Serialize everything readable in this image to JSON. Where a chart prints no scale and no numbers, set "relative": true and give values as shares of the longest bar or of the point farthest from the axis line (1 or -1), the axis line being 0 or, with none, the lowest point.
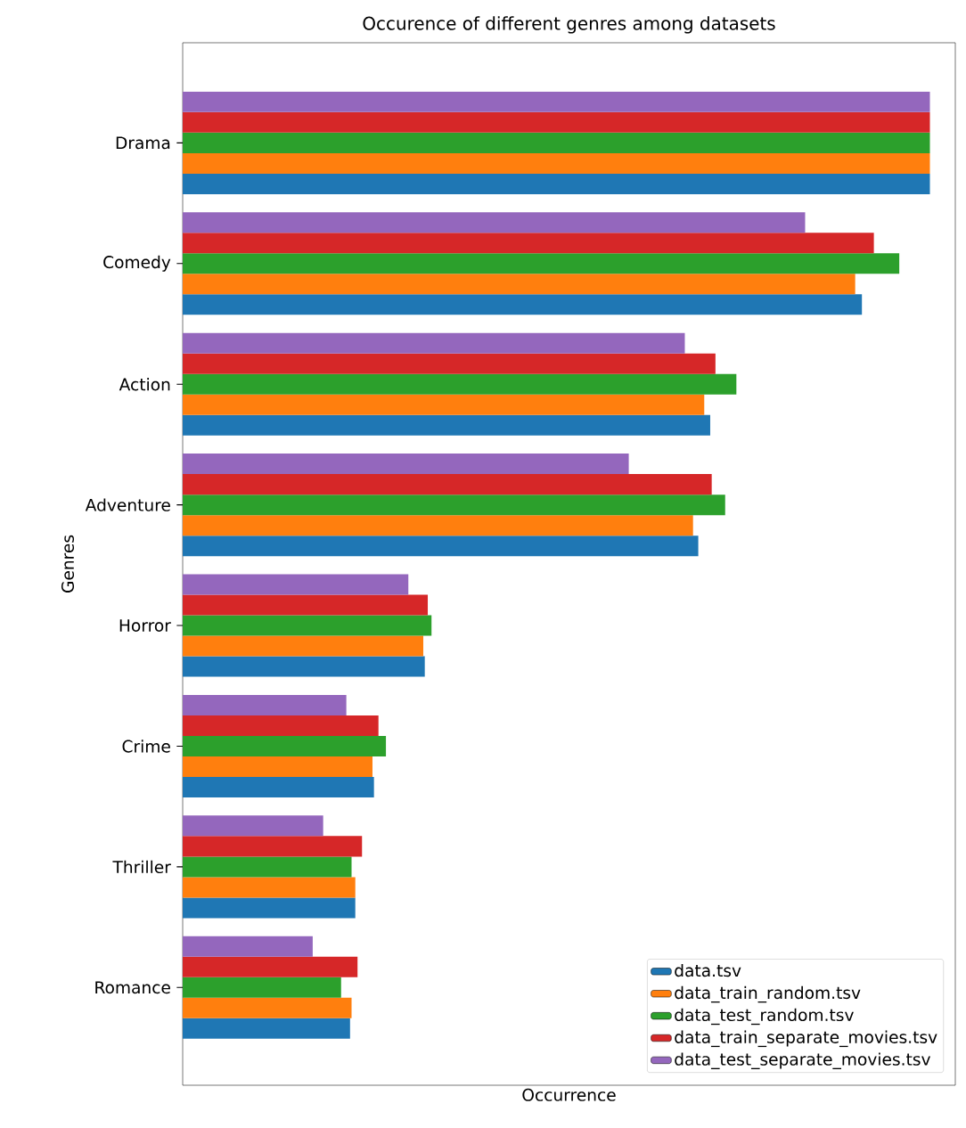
{
  "chart_data": {
    "type": "bar",
    "orientation": "horizontal",
    "relative": true,
    "title": "Occurence of different genres among datasets",
    "xlabel": "Occurrence",
    "ylabel": "Genres",
    "legend": "bottom right",
    "categories": [
      "Drama",
      "Comedy",
      "Action",
      "Adventure",
      "Horror",
      "Crime",
      "Thriller",
      "Romance"
    ],
    "series": [
      {
        "name": "data.tsv",
        "color": "#1f77b4",
        "values": [
          1,
          0.909,
          0.706,
          0.69,
          0.324,
          0.256,
          0.231,
          0.224
        ]
      },
      {
        "name": "data_train_random.tsv",
        "color": "#ff7f0e",
        "values": [
          1,
          0.9,
          0.698,
          0.683,
          0.322,
          0.254,
          0.231,
          0.226
        ]
      },
      {
        "name": "data_test_random.tsv",
        "color": "#2ca02c",
        "values": [
          1,
          0.959,
          0.741,
          0.726,
          0.333,
          0.272,
          0.226,
          0.212
        ]
      },
      {
        "name": "data_train_separate_movies.tsv",
        "color": "#d62728",
        "values": [
          1,
          0.925,
          0.713,
          0.708,
          0.328,
          0.262,
          0.24,
          0.234
        ]
      },
      {
        "name": "data_test_separate_movies.tsv",
        "color": "#9467bd",
        "values": [
          1,
          0.833,
          0.672,
          0.597,
          0.302,
          0.219,
          0.188,
          0.174
        ]
      }
    ]
  }
}
